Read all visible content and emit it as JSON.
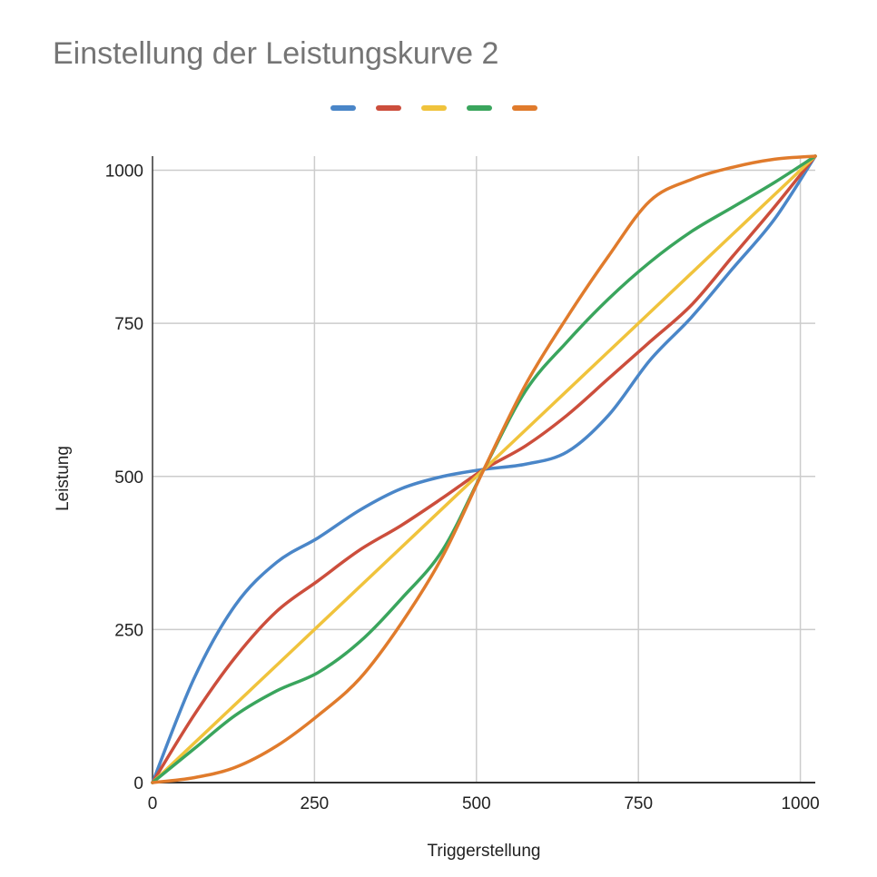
{
  "chart_data": {
    "type": "line",
    "title": "Einstellung der Leistungskurve 2",
    "xlabel": "Triggerstellung",
    "ylabel": "Leistung",
    "xlim": [
      0,
      1023
    ],
    "ylim": [
      0,
      1023
    ],
    "x_ticks": [
      0,
      250,
      500,
      750,
      1000
    ],
    "y_ticks": [
      0,
      250,
      500,
      750,
      1000
    ],
    "grid": true,
    "legend_position": "top",
    "x": [
      0,
      64,
      128,
      192,
      256,
      320,
      384,
      448,
      511.5,
      576,
      640,
      704,
      768,
      832,
      896,
      960,
      1023
    ],
    "series": [
      {
        "color": "#4a86c8",
        "values": [
          0,
          170,
          290,
          360,
          400,
          445,
          480,
          500,
          511.5,
          520,
          540,
          600,
          690,
          760,
          840,
          920,
          1023
        ]
      },
      {
        "color": "#cc4e3c",
        "values": [
          0,
          110,
          205,
          280,
          330,
          380,
          420,
          465,
          511.5,
          550,
          600,
          660,
          720,
          780,
          860,
          940,
          1023
        ]
      },
      {
        "color": "#f0c33c",
        "values": [
          0,
          64,
          128,
          192,
          256,
          320,
          384,
          448,
          511.5,
          576,
          640,
          704,
          768,
          832,
          896,
          960,
          1023
        ]
      },
      {
        "color": "#3aa55d",
        "values": [
          0,
          55,
          110,
          150,
          180,
          230,
          300,
          380,
          511.5,
          640,
          720,
          790,
          850,
          900,
          940,
          980,
          1023
        ]
      },
      {
        "color": "#e07b2c",
        "values": [
          0,
          8,
          25,
          60,
          110,
          170,
          260,
          370,
          511.5,
          650,
          760,
          860,
          950,
          985,
          1005,
          1018,
          1023
        ]
      }
    ]
  }
}
